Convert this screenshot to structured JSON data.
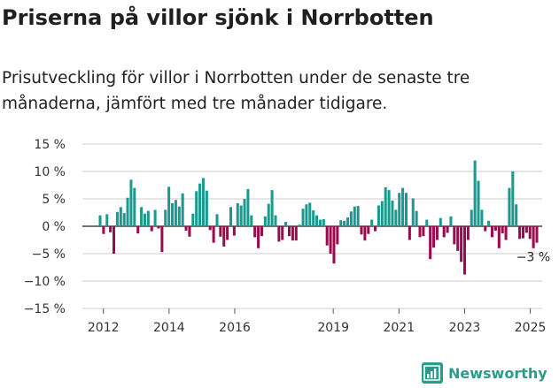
{
  "title": "Priserna på villor sjönk i Norrbotten",
  "subtitle": "Prisutveckling för villor i Norrbotten under de senaste tre månaderna, jämfört med tre månader tidigare.",
  "logo_text": "Newsworthy",
  "colors": {
    "positive": "#1a9a8e",
    "negative": "#9c0a4e",
    "zero_line": "#222222",
    "grid": "#cccccc"
  },
  "chart_data": {
    "type": "bar",
    "title": "Priserna på villor sjönk i Norrbotten",
    "xlabel": "",
    "ylabel": "",
    "ylim": [
      -15,
      15
    ],
    "y_ticks": [
      "15 %",
      "10 %",
      "5 %",
      "0 %",
      "−5 %",
      "−10 %",
      "−15 %"
    ],
    "x_ticks": [
      "2012",
      "2014",
      "2016",
      "2019",
      "2021",
      "2023",
      "2025"
    ],
    "grid": "horizontal",
    "x_start_year": 2011.9,
    "x_end_year": 2025.2,
    "values": [
      2.0,
      -1.4,
      2.2,
      -1.1,
      -5.0,
      2.6,
      3.5,
      2.4,
      5.2,
      8.5,
      7.0,
      -1.3,
      3.5,
      2.3,
      2.8,
      -0.9,
      3.0,
      -0.4,
      -4.7,
      3.0,
      7.2,
      4.2,
      4.8,
      3.6,
      6.0,
      -0.8,
      -1.9,
      2.3,
      6.4,
      7.8,
      8.8,
      6.5,
      -0.7,
      -3.0,
      2.2,
      -1.9,
      -3.7,
      -2.5,
      3.5,
      -1.7,
      4.2,
      3.8,
      5.0,
      6.8,
      2.0,
      -2.0,
      -4.0,
      -1.8,
      1.8,
      4.1,
      6.6,
      2.0,
      -2.8,
      -2.5,
      0.8,
      -1.8,
      -2.6,
      -2.6,
      0.3,
      3.2,
      4.0,
      4.3,
      2.9,
      2.0,
      1.2,
      1.3,
      -3.5,
      -5.0,
      -6.8,
      -3.3,
      1.1,
      1.0,
      1.6,
      2.7,
      3.6,
      3.7,
      -1.5,
      -2.6,
      -1.4,
      1.2,
      -0.9,
      3.8,
      4.6,
      7.1,
      6.6,
      4.7,
      3.0,
      6.1,
      7.0,
      6.1,
      -2.5,
      5.1,
      2.8,
      -2.0,
      -1.8,
      1.2,
      -6.0,
      -3.9,
      -2.5,
      1.5,
      -2.0,
      -1.2,
      1.8,
      -3.3,
      -4.5,
      -6.5,
      -8.8,
      -2.5,
      3.0,
      12.0,
      8.3,
      3.0,
      -0.9,
      1.0,
      -2.0,
      -0.8,
      -4.0,
      -1.3,
      -2.5,
      7.0,
      10.0,
      4.0,
      -2.3,
      -2.2,
      -1.2,
      -2.3,
      -4.0,
      -3.0
    ],
    "annotations": [
      {
        "text": "−3 %",
        "index": 127
      }
    ]
  }
}
